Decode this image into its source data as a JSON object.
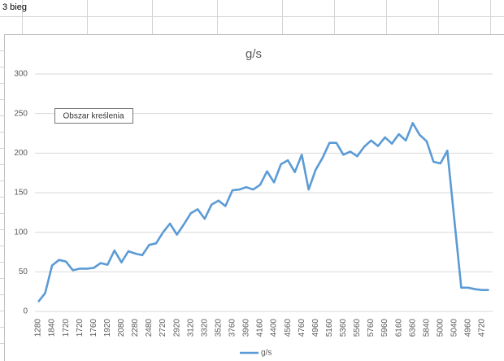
{
  "sheet": {
    "cell": "3 bieg"
  },
  "tooltip": "Obszar kreślenia",
  "chart_data": {
    "type": "line",
    "title": "g/s",
    "categories": [
      "1280",
      null,
      "1840",
      null,
      "1720",
      null,
      "1720",
      null,
      "1760",
      null,
      "1920",
      null,
      "2080",
      null,
      "2280",
      null,
      "2480",
      null,
      "2720",
      null,
      "2920",
      null,
      "3120",
      null,
      "3320",
      null,
      "3520",
      null,
      "3760",
      null,
      "3960",
      null,
      "4160",
      null,
      "4400",
      null,
      "4560",
      null,
      "4760",
      null,
      "4960",
      null,
      "5160",
      null,
      "5360",
      null,
      "5560",
      null,
      "5760",
      null,
      "5960",
      null,
      "6160",
      null,
      "6360",
      null,
      "5840",
      null,
      "5000",
      null,
      "5040",
      null,
      "4960",
      null,
      "4720",
      null
    ],
    "series": [
      {
        "name": "g/s",
        "color": "#5b9bd5",
        "values": [
          12,
          23,
          58,
          65,
          63,
          52,
          54,
          54,
          55,
          61,
          59,
          77,
          62,
          76,
          73,
          71,
          84,
          86,
          100,
          111,
          97,
          110,
          124,
          129,
          117,
          135,
          140,
          133,
          153,
          154,
          157,
          154,
          160,
          177,
          163,
          186,
          191,
          176,
          198,
          154,
          179,
          194,
          213,
          213,
          198,
          202,
          196,
          208,
          216,
          209,
          220,
          212,
          224,
          216,
          238,
          223,
          215,
          189,
          187,
          203,
          116,
          30,
          30,
          28,
          27,
          27
        ]
      }
    ],
    "ylim": [
      0,
      300
    ],
    "yticks": [
      0,
      50,
      100,
      150,
      200,
      250,
      300
    ],
    "grid": true,
    "legend": "bottom"
  }
}
